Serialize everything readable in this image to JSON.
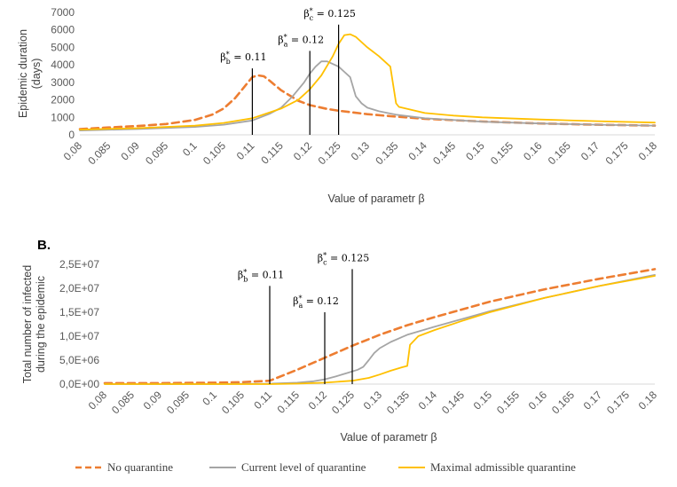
{
  "chart_data": [
    {
      "id": "A",
      "type": "line",
      "panel_label": "",
      "ylabel_lines": [
        "Epidemic duration",
        "(days)"
      ],
      "xlabel": "Value of parametr β",
      "ylim": [
        0,
        7000
      ],
      "y_ticks": [
        0,
        1000,
        2000,
        3000,
        4000,
        5000,
        6000,
        7000
      ],
      "y_tick_labels": [
        "0",
        "1000",
        "2000",
        "3000",
        "4000",
        "5000",
        "6000",
        "7000"
      ],
      "x_ticks": [
        "0.08",
        "0.085",
        "0.09",
        "0.095",
        "0.1",
        "0.105",
        "0.11",
        "0.115",
        "0.12",
        "0.125",
        "0.13",
        "0.135",
        "0.14",
        "0.145",
        "0.15",
        "0.155",
        "0.16",
        "0.165",
        "0.17",
        "0.175",
        "0.18"
      ],
      "markers": [
        {
          "beta": 0.11,
          "top": 3800,
          "label_symbol": "β",
          "label_sub": "b",
          "label_value": " = 0.11"
        },
        {
          "beta": 0.12,
          "top": 4800,
          "label_symbol": "β",
          "label_sub": "a",
          "label_value": " = 0.12"
        },
        {
          "beta": 0.125,
          "top": 6300,
          "label_symbol": "β",
          "label_sub": "c",
          "label_value": " = 0.125"
        }
      ],
      "series": [
        {
          "name": "No quarantine",
          "style": "dashed",
          "color": "#ED7D31",
          "x": [
            0.08,
            0.085,
            0.09,
            0.095,
            0.1,
            0.103,
            0.105,
            0.107,
            0.109,
            0.11,
            0.111,
            0.112,
            0.113,
            0.115,
            0.118,
            0.12,
            0.123,
            0.125,
            0.13,
            0.135,
            0.14,
            0.15,
            0.16,
            0.17,
            0.18
          ],
          "values": [
            330,
            420,
            500,
            620,
            850,
            1150,
            1500,
            2100,
            2900,
            3300,
            3400,
            3350,
            3100,
            2550,
            1950,
            1700,
            1480,
            1380,
            1180,
            1040,
            920,
            760,
            650,
            580,
            530
          ]
        },
        {
          "name": "Current level of quarantine",
          "style": "solid",
          "color": "#A5A5A5",
          "x": [
            0.08,
            0.09,
            0.1,
            0.105,
            0.11,
            0.113,
            0.115,
            0.117,
            0.119,
            0.12,
            0.121,
            0.122,
            0.123,
            0.125,
            0.126,
            0.127,
            0.128,
            0.129,
            0.13,
            0.132,
            0.135,
            0.14,
            0.15,
            0.16,
            0.17,
            0.18
          ],
          "values": [
            250,
            330,
            450,
            580,
            820,
            1200,
            1550,
            2200,
            3000,
            3500,
            3900,
            4200,
            4200,
            3900,
            3600,
            3300,
            2200,
            1800,
            1550,
            1350,
            1150,
            950,
            750,
            650,
            580,
            530
          ]
        },
        {
          "name": "Maximal admissible quarantine",
          "style": "solid",
          "color": "#FFC000",
          "x": [
            0.08,
            0.09,
            0.1,
            0.105,
            0.11,
            0.115,
            0.118,
            0.12,
            0.122,
            0.124,
            0.125,
            0.126,
            0.127,
            0.128,
            0.129,
            0.13,
            0.132,
            0.134,
            0.135,
            0.1355,
            0.14,
            0.145,
            0.15,
            0.16,
            0.17,
            0.18
          ],
          "values": [
            300,
            380,
            520,
            680,
            950,
            1500,
            2000,
            2600,
            3400,
            4500,
            5200,
            5700,
            5750,
            5600,
            5300,
            5000,
            4500,
            3900,
            1800,
            1600,
            1250,
            1100,
            1000,
            880,
            780,
            700
          ]
        }
      ]
    },
    {
      "id": "B",
      "type": "line",
      "panel_label": "B.",
      "ylabel_lines": [
        "Total number of infected",
        "during the epidemic"
      ],
      "xlabel": "Value of parametr β",
      "ylim": [
        0,
        25000000
      ],
      "y_ticks": [
        0,
        5000000,
        10000000,
        15000000,
        20000000,
        25000000
      ],
      "y_tick_labels": [
        "0,0E+00",
        "5,0E+06",
        "1,0E+07",
        "1,5E+07",
        "2,0E+07",
        "2,5E+07"
      ],
      "x_ticks": [
        "0.08",
        "0.085",
        "0.09",
        "0.095",
        "0.1",
        "0.105",
        "0.11",
        "0.115",
        "0.12",
        "0.125",
        "0.13",
        "0.135",
        "0.14",
        "0.145",
        "0.15",
        "0.155",
        "0.16",
        "0.165",
        "0.17",
        "0.175",
        "0.18"
      ],
      "markers": [
        {
          "beta": 0.11,
          "top": 20500000,
          "label_symbol": "β",
          "label_sub": "b",
          "label_value": " = 0.11"
        },
        {
          "beta": 0.12,
          "top": 15000000,
          "label_symbol": "β",
          "label_sub": "a",
          "label_value": " = 0.12"
        },
        {
          "beta": 0.125,
          "top": 24000000,
          "label_symbol": "β",
          "label_sub": "c",
          "label_value": " = 0.125"
        }
      ],
      "series": [
        {
          "name": "No quarantine",
          "style": "dashed",
          "color": "#ED7D31",
          "x": [
            0.08,
            0.09,
            0.1,
            0.105,
            0.11,
            0.115,
            0.12,
            0.125,
            0.13,
            0.135,
            0.14,
            0.15,
            0.16,
            0.17,
            0.18
          ],
          "values": [
            200000,
            200000,
            300000,
            400000,
            700000,
            3000000,
            5500000,
            8000000,
            10300000,
            12300000,
            14000000,
            17200000,
            19800000,
            22000000,
            24000000
          ]
        },
        {
          "name": "Current level of quarantine",
          "style": "solid",
          "color": "#A5A5A5",
          "x": [
            0.08,
            0.1,
            0.11,
            0.115,
            0.118,
            0.12,
            0.122,
            0.124,
            0.126,
            0.127,
            0.128,
            0.129,
            0.13,
            0.132,
            0.134,
            0.135,
            0.14,
            0.145,
            0.15,
            0.16,
            0.17,
            0.18
          ],
          "values": [
            0,
            0,
            100000,
            300000,
            600000,
            1000000,
            1600000,
            2300000,
            3000000,
            3600000,
            5000000,
            6500000,
            7500000,
            8800000,
            9800000,
            10300000,
            12000000,
            13600000,
            15200000,
            18000000,
            20500000,
            22800000
          ]
        },
        {
          "name": "Maximal admissible quarantine",
          "style": "solid",
          "color": "#FFC000",
          "x": [
            0.08,
            0.1,
            0.11,
            0.115,
            0.12,
            0.125,
            0.128,
            0.13,
            0.132,
            0.134,
            0.135,
            0.1355,
            0.137,
            0.14,
            0.145,
            0.15,
            0.16,
            0.17,
            0.18
          ],
          "values": [
            0,
            0,
            0,
            100000,
            300000,
            700000,
            1300000,
            2000000,
            2800000,
            3500000,
            3800000,
            8200000,
            10000000,
            11300000,
            13200000,
            15000000,
            18000000,
            20500000,
            22600000
          ]
        }
      ]
    }
  ],
  "legend": {
    "items": [
      {
        "label": "No quarantine",
        "style": "dashed",
        "color": "#ED7D31"
      },
      {
        "label": "Current level of quarantine",
        "style": "solid",
        "color": "#A5A5A5"
      },
      {
        "label": "Maximal admissible quarantine",
        "style": "solid",
        "color": "#FFC000"
      }
    ]
  }
}
